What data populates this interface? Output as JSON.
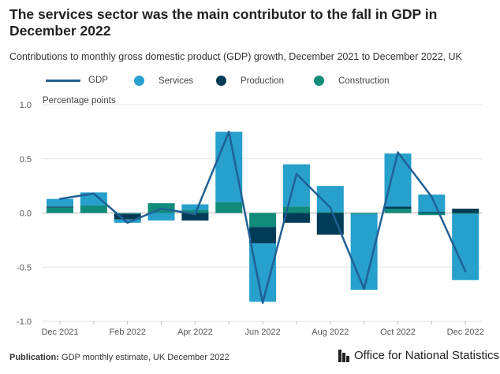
{
  "header": {
    "title": "The services sector was the main contributor to the fall in GDP in December 2022",
    "subtitle": "Contributions to monthly gross domestic product (GDP) growth, December 2021 to December 2022, UK"
  },
  "legend": [
    {
      "label": "GDP",
      "color": "#206095",
      "shape": "line"
    },
    {
      "label": "Services",
      "color": "#27a0cc",
      "shape": "dot"
    },
    {
      "label": "Production",
      "color": "#003c57",
      "shape": "dot"
    },
    {
      "label": "Construction",
      "color": "#118c7b",
      "shape": "dot"
    }
  ],
  "footer": {
    "publication_label": "Publication:",
    "publication_text": "GDP monthly estimate, UK December 2022"
  },
  "logo": {
    "text": "Office for National Statistics"
  },
  "chart_data": {
    "type": "bar",
    "stacked": true,
    "title": "The services sector was the main contributor to the fall in GDP in December 2022",
    "ylabel": "Percentage points",
    "ylim": [
      -1.0,
      1.0
    ],
    "yticks": [
      1.0,
      0.5,
      0.0,
      -0.5,
      -1.0
    ],
    "ytick_labels": [
      "1.0",
      "0.5",
      "0.0",
      "-0.5",
      "-1.0"
    ],
    "categories": [
      "Dec 2021",
      "Jan 2022",
      "Feb 2022",
      "Mar 2022",
      "Apr 2022",
      "May 2022",
      "Jun 2022",
      "Jul 2022",
      "Aug 2022",
      "Sep 2022",
      "Oct 2022",
      "Nov 2022",
      "Dec 2022"
    ],
    "xtick_labels": [
      "Dec 2021",
      "",
      "Feb 2022",
      "",
      "Apr 2022",
      "",
      "Jun 2022",
      "",
      "Aug 2022",
      "",
      "Oct 2022",
      "",
      "Dec 2022"
    ],
    "series": [
      {
        "name": "Construction",
        "color": "#118c7b",
        "values": [
          0.05,
          0.07,
          -0.01,
          0.09,
          0.03,
          0.1,
          -0.13,
          0.06,
          0.01,
          -0.01,
          0.04,
          -0.02,
          -0.01
        ]
      },
      {
        "name": "Production",
        "color": "#003c57",
        "values": [
          0.01,
          0.0,
          -0.05,
          0.0,
          -0.07,
          0.0,
          -0.15,
          -0.09,
          -0.2,
          0.0,
          0.02,
          0.01,
          0.04
        ]
      },
      {
        "name": "Services",
        "color": "#27a0cc",
        "values": [
          0.07,
          0.12,
          -0.03,
          -0.07,
          0.05,
          0.65,
          -0.54,
          0.39,
          0.24,
          -0.7,
          0.49,
          0.16,
          -0.61
        ]
      }
    ],
    "line": {
      "name": "GDP",
      "color": "#206095",
      "values": [
        0.13,
        0.18,
        -0.09,
        0.04,
        -0.01,
        0.75,
        -0.83,
        0.36,
        0.05,
        -0.7,
        0.56,
        0.15,
        -0.54
      ]
    }
  }
}
